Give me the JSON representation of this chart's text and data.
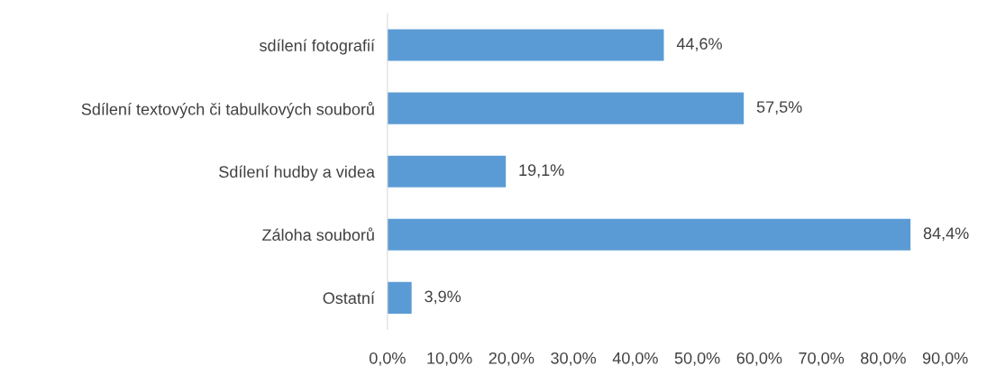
{
  "chart_data": {
    "type": "bar",
    "orientation": "horizontal",
    "categories": [
      "sdílení fotografií",
      "Sdílení textových či tabulkových souborů",
      "Sdílení hudby a videa",
      "Záloha souborů",
      "Ostatní"
    ],
    "values": [
      44.6,
      57.5,
      19.1,
      84.4,
      3.9
    ],
    "value_labels": [
      "44,6%",
      "57,5%",
      "19,1%",
      "84,4%",
      "3,9%"
    ],
    "color": "#5b9bd5",
    "xlim": [
      0,
      90
    ],
    "xticks": [
      {
        "value": 0,
        "label": "0,0%"
      },
      {
        "value": 10,
        "label": "10,0%"
      },
      {
        "value": 20,
        "label": "20,0%"
      },
      {
        "value": 30,
        "label": "30,0%"
      },
      {
        "value": 40,
        "label": "40,0%"
      },
      {
        "value": 50,
        "label": "50,0%"
      },
      {
        "value": 60,
        "label": "60,0%"
      },
      {
        "value": 70,
        "label": "70,0%"
      },
      {
        "value": 80,
        "label": "80,0%"
      },
      {
        "value": 90,
        "label": "90,0%"
      }
    ],
    "grid": false,
    "legend": false
  }
}
